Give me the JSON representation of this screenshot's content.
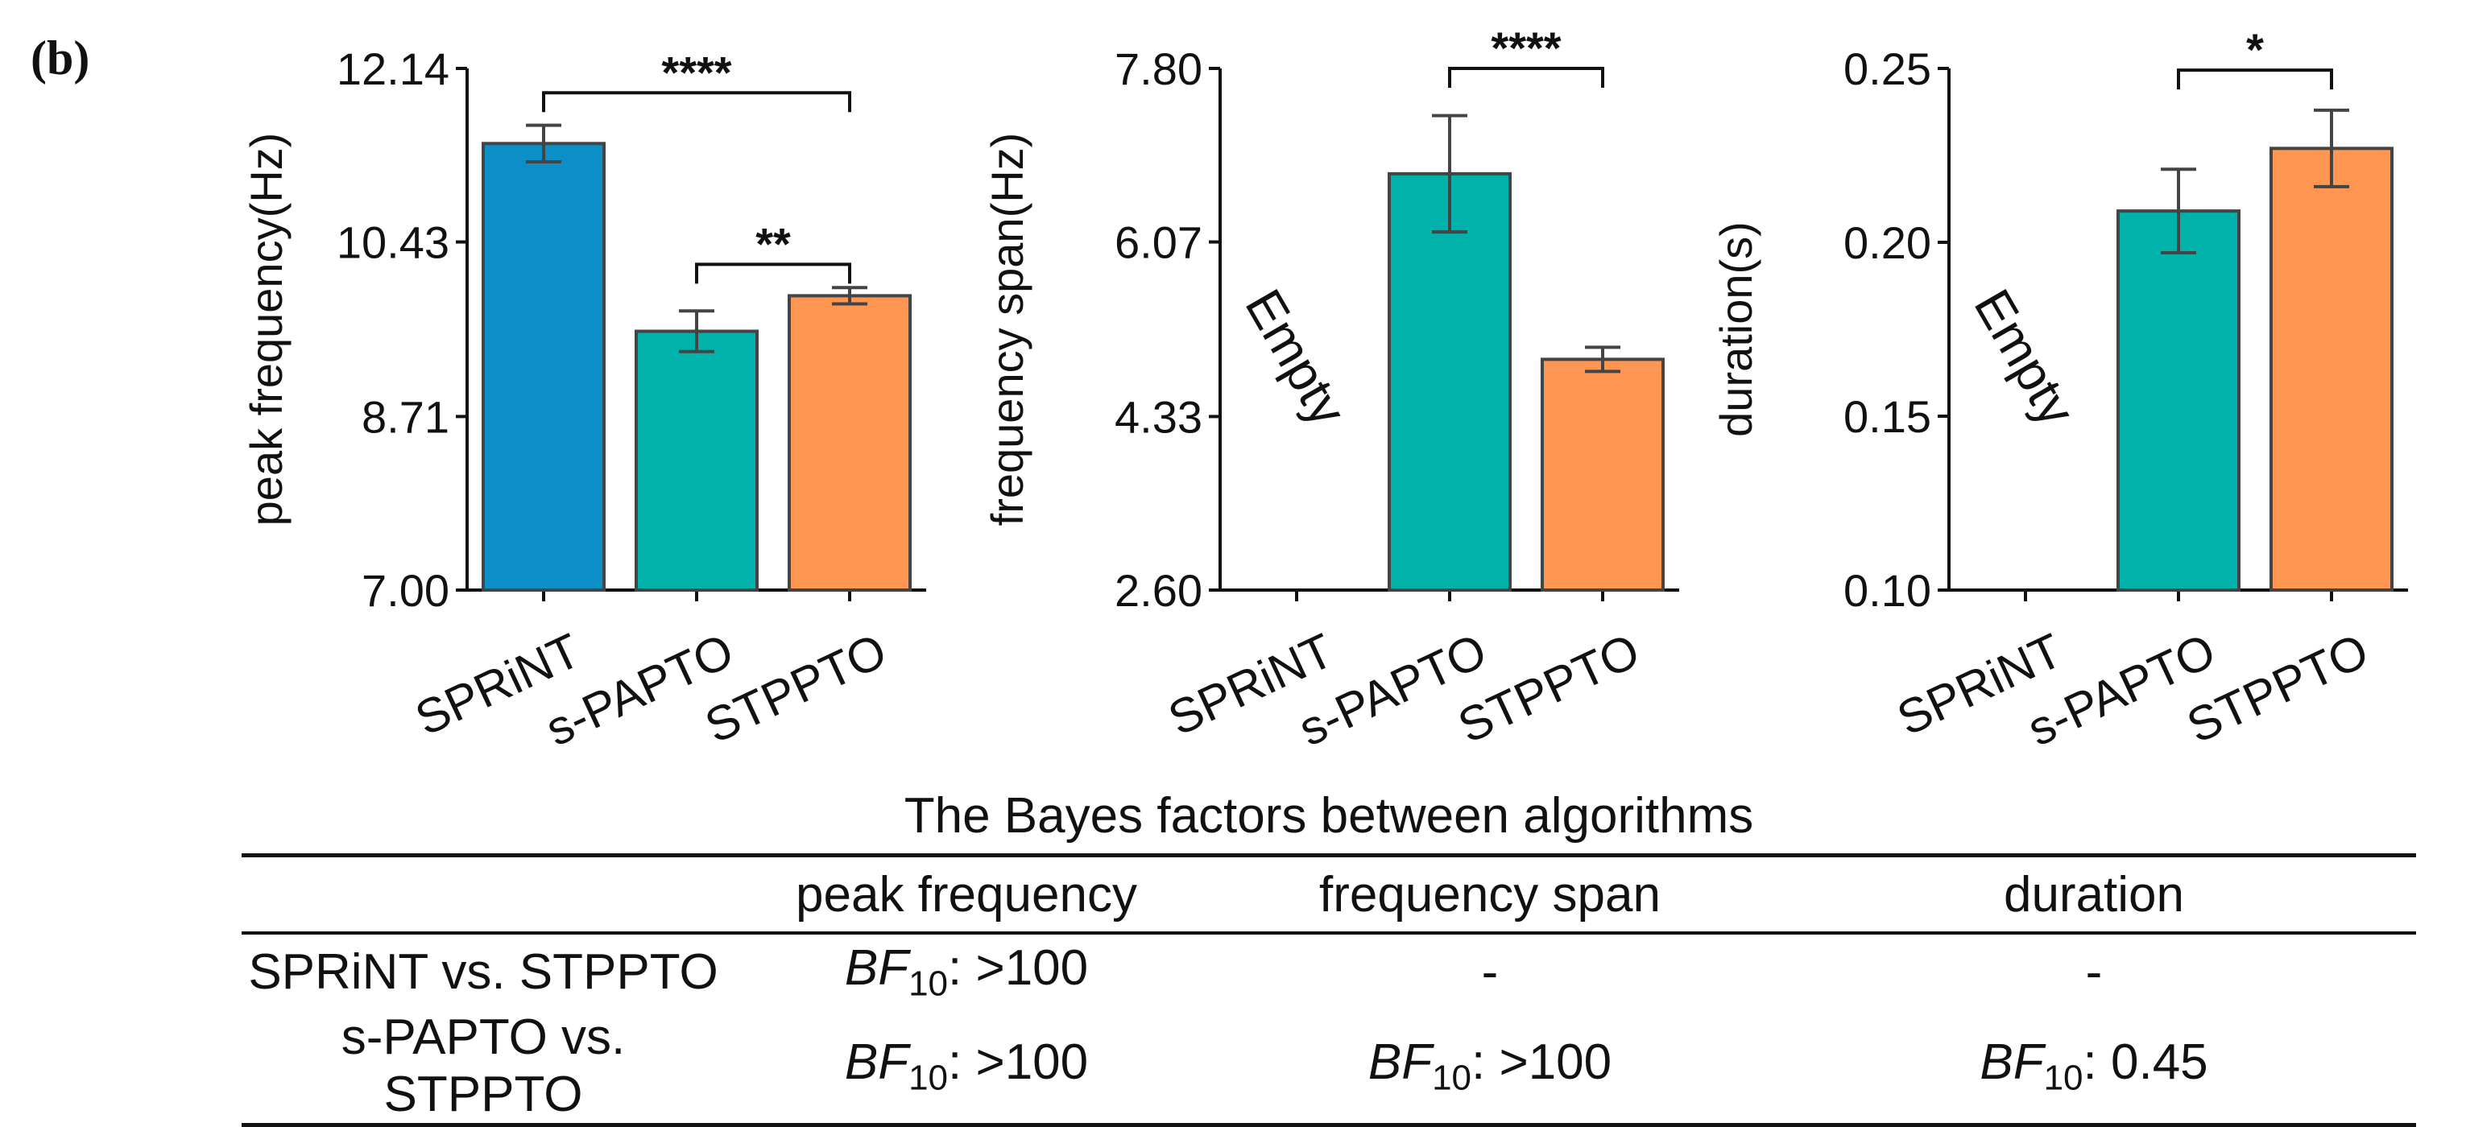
{
  "panel_label": "(b)",
  "chart_data": [
    {
      "type": "bar",
      "ylabel": "peak frequency(Hz)",
      "categories": [
        "SPRiNT",
        "s-PAPTO",
        "STPPTO"
      ],
      "values": [
        11.4,
        9.55,
        9.9
      ],
      "errors": [
        0.18,
        0.2,
        0.08
      ],
      "colors": [
        "#0b8fc6",
        "#00b2a9",
        "#ff9651"
      ],
      "ylim": [
        7.0,
        12.14
      ],
      "yticks": [
        7.0,
        8.71,
        10.43,
        12.14
      ],
      "ytick_labels": [
        "7.00",
        "8.71",
        "10.43",
        "12.14"
      ],
      "empty": [],
      "empty_label": "Empty",
      "brackets": [
        {
          "from": 0,
          "to": 2,
          "level": 11.9,
          "label": "****"
        },
        {
          "from": 1,
          "to": 2,
          "level": 10.21,
          "label": "**"
        }
      ]
    },
    {
      "type": "bar",
      "ylabel": "frequency span(Hz)",
      "categories": [
        "SPRiNT",
        "s-PAPTO",
        "STPPTO"
      ],
      "values": [
        null,
        6.75,
        4.9
      ],
      "errors": [
        null,
        0.58,
        0.12
      ],
      "colors": [
        "#0b8fc6",
        "#00b2a9",
        "#ff9651"
      ],
      "ylim": [
        2.6,
        7.8
      ],
      "yticks": [
        2.6,
        4.33,
        6.07,
        7.8
      ],
      "ytick_labels": [
        "2.60",
        "4.33",
        "6.07",
        "7.80"
      ],
      "empty": [
        0
      ],
      "empty_label": "Empty",
      "brackets": [
        {
          "from": 1,
          "to": 2,
          "level": 7.8,
          "label": "****"
        }
      ]
    },
    {
      "type": "bar",
      "ylabel": "duration(s)",
      "categories": [
        "SPRiNT",
        "s-PAPTO",
        "STPPTO"
      ],
      "values": [
        null,
        0.209,
        0.227
      ],
      "errors": [
        null,
        0.012,
        0.011
      ],
      "colors": [
        "#0b8fc6",
        "#00b2a9",
        "#ff9651"
      ],
      "ylim": [
        0.1,
        0.25
      ],
      "yticks": [
        0.1,
        0.15,
        0.2,
        0.25
      ],
      "ytick_labels": [
        "0.10",
        "0.15",
        "0.20",
        "0.25"
      ],
      "empty": [
        0
      ],
      "empty_label": "Empty",
      "brackets": [
        {
          "from": 1,
          "to": 2,
          "level": 0.2495,
          "label": "*"
        }
      ]
    }
  ],
  "table": {
    "title": "The Bayes factors between algorithms",
    "headers": [
      "",
      "peak frequency",
      "frequency span",
      "duration"
    ],
    "bf_symbol": "BF",
    "bf_subscript": "10",
    "rows": [
      {
        "label": "SPRiNT vs. STPPTO",
        "cells": [
          {
            "bf": true,
            "value": ": >100"
          },
          {
            "bf": false,
            "value": "-"
          },
          {
            "bf": false,
            "value": "-"
          }
        ]
      },
      {
        "label": "s-PAPTO vs. STPPTO",
        "cells": [
          {
            "bf": true,
            "value": ": >100"
          },
          {
            "bf": true,
            "value": ":  >100"
          },
          {
            "bf": true,
            "value": ":  0.45"
          }
        ]
      }
    ]
  }
}
